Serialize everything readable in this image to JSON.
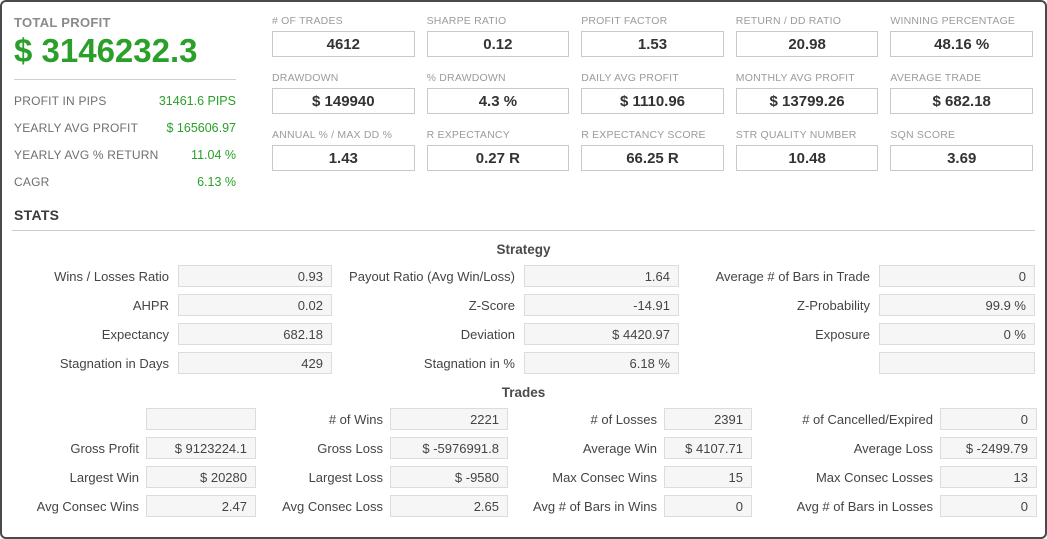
{
  "summary": {
    "total_profit_label": "TOTAL PROFIT",
    "total_profit_value": "$ 3146232.3",
    "rows": [
      {
        "label": "PROFIT IN PIPS",
        "value": "31461.6 PIPS"
      },
      {
        "label": "YEARLY AVG PROFIT",
        "value": "$ 165606.97"
      },
      {
        "label": "YEARLY AVG % RETURN",
        "value": "11.04 %"
      },
      {
        "label": "CAGR",
        "value": "6.13 %"
      }
    ]
  },
  "metrics": [
    {
      "label": "# OF TRADES",
      "value": "4612"
    },
    {
      "label": "SHARPE RATIO",
      "value": "0.12"
    },
    {
      "label": "PROFIT FACTOR",
      "value": "1.53"
    },
    {
      "label": "RETURN / DD RATIO",
      "value": "20.98"
    },
    {
      "label": "WINNING PERCENTAGE",
      "value": "48.16 %"
    },
    {
      "label": "DRAWDOWN",
      "value": "$ 149940"
    },
    {
      "label": "% DRAWDOWN",
      "value": "4.3 %"
    },
    {
      "label": "DAILY AVG PROFIT",
      "value": "$ 1110.96"
    },
    {
      "label": "MONTHLY AVG PROFIT",
      "value": "$ 13799.26"
    },
    {
      "label": "AVERAGE TRADE",
      "value": "$ 682.18"
    },
    {
      "label": "ANNUAL % / MAX DD %",
      "value": "1.43"
    },
    {
      "label": "R EXPECTANCY",
      "value": "0.27 R"
    },
    {
      "label": "R EXPECTANCY SCORE",
      "value": "66.25 R"
    },
    {
      "label": "STR QUALITY NUMBER",
      "value": "10.48"
    },
    {
      "label": "SQN SCORE",
      "value": "3.69"
    }
  ],
  "stats": {
    "heading": "STATS",
    "strategy": {
      "title": "Strategy",
      "cells": [
        {
          "label": "Wins / Losses Ratio",
          "value": "0.93"
        },
        {
          "label": "Payout Ratio (Avg Win/Loss)",
          "value": "1.64"
        },
        {
          "label": "Average # of Bars in Trade",
          "value": "0"
        },
        {
          "label": "AHPR",
          "value": "0.02"
        },
        {
          "label": "Z-Score",
          "value": "-14.91"
        },
        {
          "label": "Z-Probability",
          "value": "99.9 %"
        },
        {
          "label": "Expectancy",
          "value": "682.18"
        },
        {
          "label": "Deviation",
          "value": "$ 4420.97"
        },
        {
          "label": "Exposure",
          "value": "0 %"
        },
        {
          "label": "Stagnation in Days",
          "value": "429"
        },
        {
          "label": "Stagnation in %",
          "value": "6.18 %"
        },
        {
          "label": "",
          "value": ""
        }
      ]
    },
    "trades": {
      "title": "Trades",
      "cells": [
        {
          "label": "",
          "value": ""
        },
        {
          "label": "# of Wins",
          "value": "2221"
        },
        {
          "label": "# of Losses",
          "value": "2391"
        },
        {
          "label": "# of Cancelled/Expired",
          "value": "0"
        },
        {
          "label": "Gross Profit",
          "value": "$ 9123224.1"
        },
        {
          "label": "Gross Loss",
          "value": "$ -5976991.8"
        },
        {
          "label": "Average Win",
          "value": "$ 4107.71"
        },
        {
          "label": "Average Loss",
          "value": "$ -2499.79"
        },
        {
          "label": "Largest Win",
          "value": "$ 20280"
        },
        {
          "label": "Largest Loss",
          "value": "$ -9580"
        },
        {
          "label": "Max Consec Wins",
          "value": "15"
        },
        {
          "label": "Max Consec Losses",
          "value": "13"
        },
        {
          "label": "Avg Consec Wins",
          "value": "2.47"
        },
        {
          "label": "Avg Consec Loss",
          "value": "2.65"
        },
        {
          "label": "Avg # of Bars in Wins",
          "value": "0"
        },
        {
          "label": "Avg # of Bars in Losses",
          "value": "0"
        }
      ]
    }
  },
  "colors": {
    "accent_green": "#2aa02a",
    "label_gray": "#9b9b9b",
    "value_dark": "#333333",
    "stat_box_bg": "#f6f6f6"
  }
}
